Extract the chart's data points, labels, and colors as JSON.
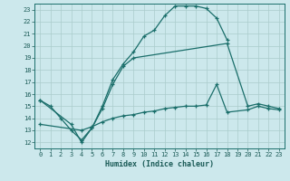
{
  "xlabel": "Humidex (Indice chaleur)",
  "bg_color": "#cce8ec",
  "grid_color": "#aacccc",
  "line_color": "#1a6e6a",
  "xlim": [
    -0.5,
    23.5
  ],
  "ylim": [
    11.5,
    23.5
  ],
  "xticks": [
    0,
    1,
    2,
    3,
    4,
    5,
    6,
    7,
    8,
    9,
    10,
    11,
    12,
    13,
    14,
    15,
    16,
    17,
    18,
    19,
    20,
    21,
    22,
    23
  ],
  "yticks": [
    12,
    13,
    14,
    15,
    16,
    17,
    18,
    19,
    20,
    21,
    22,
    23
  ],
  "series": [
    {
      "x": [
        0,
        1,
        2,
        3,
        4,
        5,
        6,
        7,
        8,
        9,
        10,
        11,
        12,
        13,
        14,
        15,
        16,
        17,
        18
      ],
      "y": [
        15.5,
        15.0,
        14.0,
        13.0,
        12.2,
        13.2,
        15.0,
        17.2,
        18.5,
        19.5,
        20.8,
        21.3,
        22.5,
        23.3,
        23.3,
        23.3,
        23.1,
        22.3,
        20.5
      ]
    },
    {
      "x": [
        0,
        3,
        4,
        5,
        6,
        7,
        8,
        9,
        18,
        20,
        21,
        22,
        23
      ],
      "y": [
        15.5,
        13.5,
        12.0,
        13.2,
        14.8,
        16.8,
        18.3,
        19.0,
        20.2,
        15.0,
        15.2,
        15.0,
        14.8
      ]
    },
    {
      "x": [
        0,
        4,
        5,
        6,
        7,
        8,
        9,
        10,
        11,
        12,
        13,
        14,
        15,
        16,
        17,
        18,
        20,
        21,
        22,
        23
      ],
      "y": [
        13.5,
        13.0,
        13.3,
        13.7,
        14.0,
        14.2,
        14.3,
        14.5,
        14.6,
        14.8,
        14.9,
        15.0,
        15.0,
        15.1,
        16.8,
        14.5,
        14.7,
        15.0,
        14.8,
        14.7
      ]
    }
  ]
}
